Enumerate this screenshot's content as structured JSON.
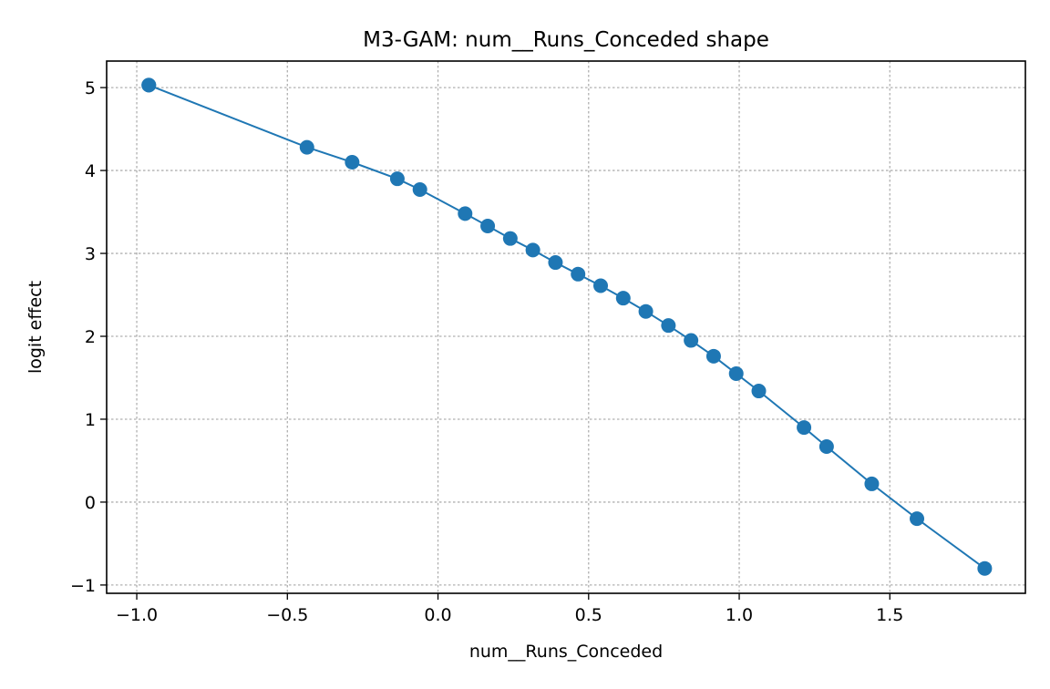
{
  "chart_data": {
    "type": "line",
    "title": "M3-GAM: num__Runs_Conceded shape",
    "xlabel": "num__Runs_Conceded",
    "ylabel": "logit effect",
    "xlim": [
      -1.1,
      1.95
    ],
    "ylim": [
      -1.1,
      5.32
    ],
    "xticks": [
      -1.0,
      -0.5,
      0.0,
      0.5,
      1.0,
      1.5
    ],
    "xtick_labels": [
      "−1.0",
      "−0.5",
      "0.0",
      "0.5",
      "1.0",
      "1.5"
    ],
    "yticks": [
      -1,
      0,
      1,
      2,
      3,
      4,
      5
    ],
    "ytick_labels": [
      "−1",
      "0",
      "1",
      "2",
      "3",
      "4",
      "5"
    ],
    "grid": true,
    "marker": "circle",
    "series": [
      {
        "color": "#1f77b4",
        "x": [
          -0.96,
          -0.96,
          -0.435,
          -0.285,
          -0.135,
          -0.06,
          0.09,
          0.165,
          0.24,
          0.315,
          0.39,
          0.465,
          0.54,
          0.615,
          0.69,
          0.765,
          0.84,
          0.915,
          0.99,
          1.065,
          1.215,
          1.29,
          1.44,
          1.59,
          1.815
        ],
        "y": [
          5.03,
          5.03,
          4.28,
          4.1,
          3.9,
          3.77,
          3.48,
          3.33,
          3.18,
          3.04,
          2.89,
          2.75,
          2.61,
          2.46,
          2.3,
          2.13,
          1.95,
          1.76,
          1.55,
          1.34,
          0.9,
          0.67,
          0.22,
          -0.2,
          -0.8
        ]
      }
    ]
  }
}
